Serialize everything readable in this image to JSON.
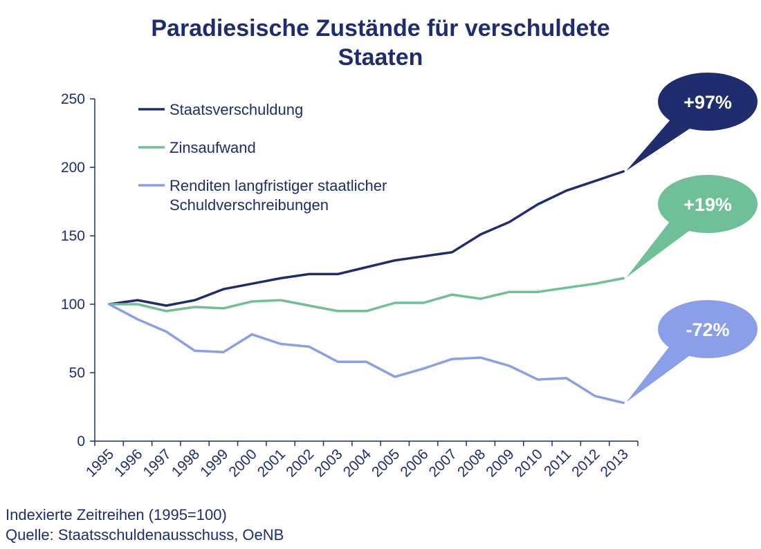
{
  "chart_data": {
    "type": "line",
    "title": [
      "Paradiesische Zustände für verschuldete",
      "Staaten"
    ],
    "xlabel": "",
    "ylabel": "",
    "x": [
      "1995",
      "1996",
      "1997",
      "1998",
      "1999",
      "2000",
      "2001",
      "2002",
      "2003",
      "2004",
      "2005",
      "2006",
      "2007",
      "2008",
      "2009",
      "2010",
      "2011",
      "2012",
      "2013"
    ],
    "ylim": [
      0,
      250
    ],
    "yticks": [
      "0",
      "50",
      "100",
      "150",
      "200",
      "250"
    ],
    "grid": false,
    "legend_position": "top-left",
    "series": [
      {
        "name": "Staatsverschuldung",
        "color": "#1f2d6e",
        "values": [
          100,
          103,
          99,
          103,
          111,
          115,
          119,
          122,
          122,
          127,
          132,
          135,
          138,
          151,
          160,
          173,
          183,
          190,
          197
        ]
      },
      {
        "name": "Zinsaufwand",
        "color": "#6fbf99",
        "values": [
          100,
          100,
          95,
          98,
          97,
          102,
          103,
          99,
          95,
          95,
          101,
          101,
          107,
          104,
          109,
          109,
          112,
          115,
          119
        ]
      },
      {
        "name_lines": [
          "Renditen langfristiger staatlicher",
          "Schuldverschreibungen"
        ],
        "color": "#8b9fe8",
        "values": [
          100,
          89,
          80,
          66,
          65,
          78,
          71,
          69,
          58,
          58,
          47,
          53,
          60,
          61,
          55,
          45,
          46,
          33,
          28
        ]
      }
    ],
    "annotations": [
      {
        "text": "+97%",
        "color": "#1f2d6e"
      },
      {
        "text": "+19%",
        "color": "#6fbf99"
      },
      {
        "text": "-72%",
        "color": "#8b9fe8"
      }
    ]
  },
  "footnotes": [
    "Indexierte Zeitreihen (1995=100)",
    "Quelle: Staatsschuldenausschuss, OeNB"
  ]
}
